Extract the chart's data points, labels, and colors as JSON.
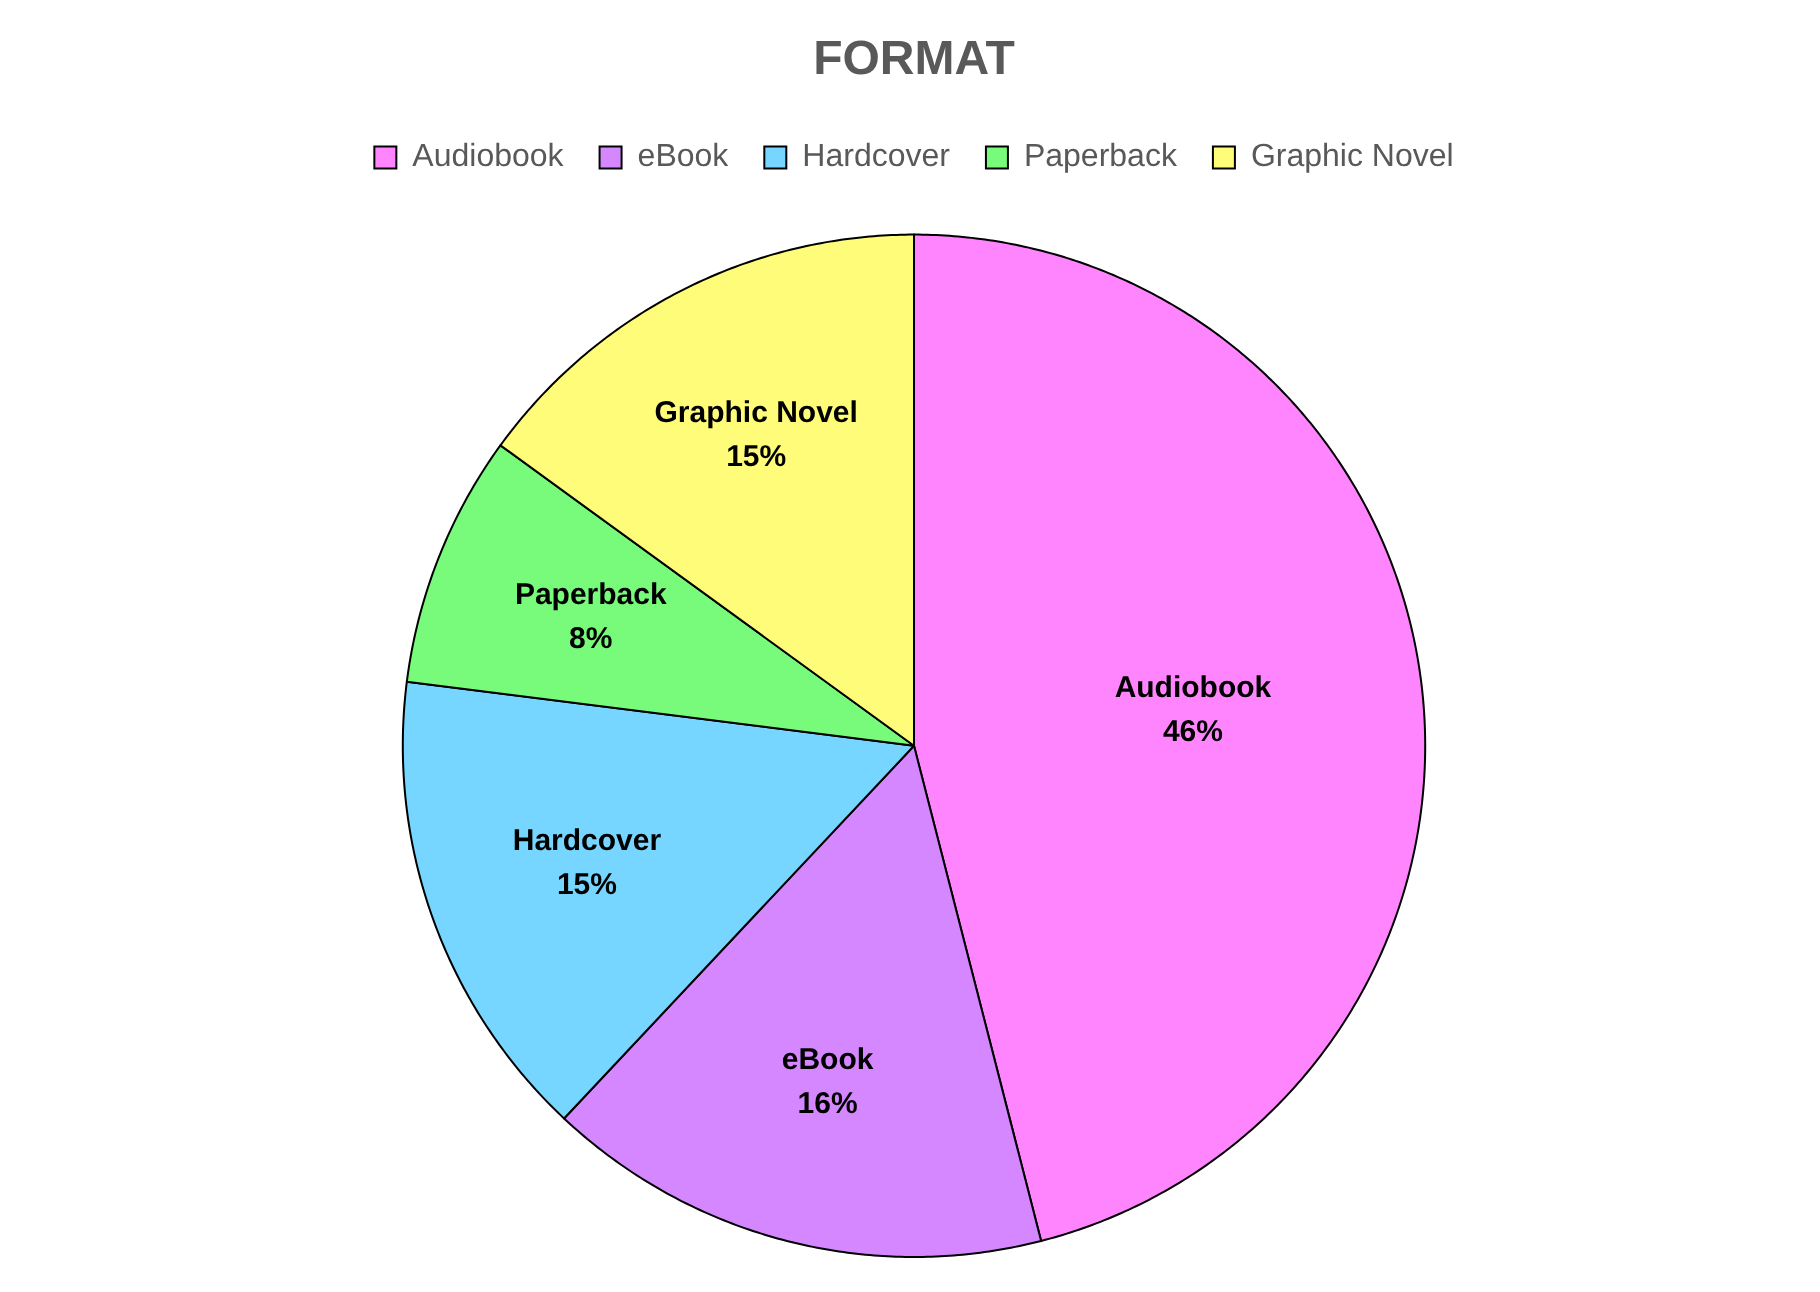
{
  "chart_data": {
    "type": "pie",
    "title": "FORMAT",
    "categories": [
      "Audiobook",
      "eBook",
      "Hardcover",
      "Paperback",
      "Graphic Novel"
    ],
    "values": [
      46,
      16,
      15,
      8,
      15
    ],
    "colors": [
      "#ff85ff",
      "#d587ff",
      "#76d6ff",
      "#78fa7a",
      "#fffc79"
    ],
    "value_labels": [
      "46%",
      "16%",
      "15%",
      "8%",
      "15%"
    ],
    "legend": "top"
  }
}
